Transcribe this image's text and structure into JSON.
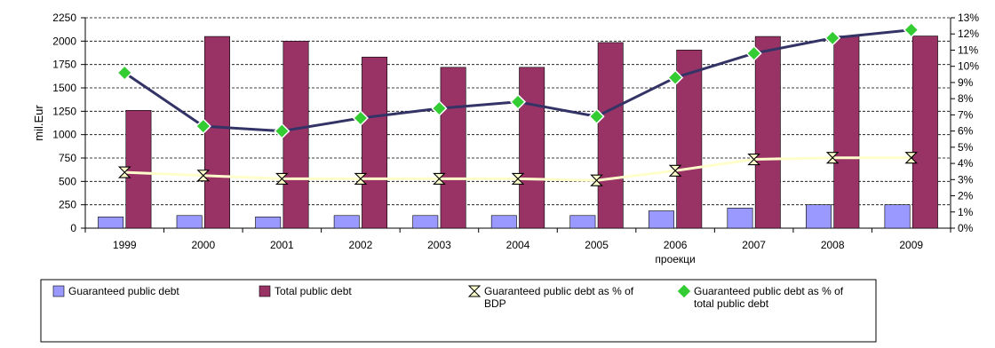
{
  "chart_data": {
    "type": "bar",
    "categories": [
      "1999",
      "2000",
      "2001",
      "2002",
      "2003",
      "2004",
      "2005",
      "2006",
      "2007",
      "2008",
      "2009"
    ],
    "category_sublabels": {
      "2006": "проекци"
    },
    "ylabel": "mil.Eur",
    "ylim": [
      0,
      2250
    ],
    "y_ticks": [
      "0",
      "250",
      "500",
      "750",
      "1000",
      "1250",
      "1500",
      "1750",
      "2000",
      "2250"
    ],
    "y2lim": [
      0,
      13
    ],
    "y2_ticks": [
      "0%",
      "1%",
      "2%",
      "3%",
      "4%",
      "5%",
      "6%",
      "7%",
      "8%",
      "9%",
      "10%",
      "11%",
      "12%",
      "13%"
    ],
    "grid": true,
    "legend_position": "bottom",
    "series": [
      {
        "name": "Guaranteed public debt",
        "kind": "bar",
        "axis": "left",
        "color": "#9999ff",
        "values": [
          120,
          135,
          120,
          135,
          135,
          135,
          135,
          185,
          215,
          250,
          250
        ]
      },
      {
        "name": "Total public debt",
        "kind": "bar",
        "axis": "left",
        "color": "#993366",
        "values": [
          1260,
          2050,
          2000,
          1830,
          1720,
          1720,
          1985,
          1905,
          2050,
          2055,
          2055
        ]
      },
      {
        "name": "Guaranteed public debt as % of BDP",
        "kind": "line",
        "axis": "right",
        "color": "#ffffcc",
        "marker": "hourglass",
        "values": [
          3.45,
          3.25,
          3.05,
          3.05,
          3.05,
          3.05,
          2.95,
          3.55,
          4.25,
          4.35,
          4.35
        ]
      },
      {
        "name": "Guaranteed public debt as % of total public debt",
        "kind": "line",
        "axis": "right",
        "color": "#333366",
        "marker": "diamond",
        "marker_color": "#33cc33",
        "values": [
          9.6,
          6.3,
          6.0,
          6.8,
          7.4,
          7.8,
          6.9,
          9.3,
          10.8,
          11.75,
          12.25
        ]
      }
    ]
  }
}
